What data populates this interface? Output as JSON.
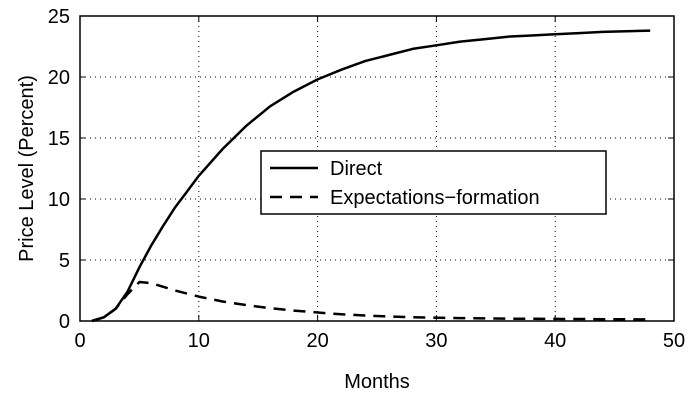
{
  "chart_data": {
    "type": "line",
    "xlabel": "Months",
    "ylabel": "Price Level (Percent)",
    "xlim": [
      0,
      50
    ],
    "ylim": [
      0,
      25
    ],
    "xticks": [
      0,
      10,
      20,
      30,
      40,
      50
    ],
    "yticks": [
      0,
      5,
      10,
      15,
      20,
      25
    ],
    "grid": true,
    "legend_position": "center-right",
    "series": [
      {
        "name": "Direct",
        "style": "solid",
        "color": "#000000",
        "x": [
          1,
          2,
          3,
          4,
          5,
          6,
          7,
          8,
          9,
          10,
          12,
          14,
          16,
          18,
          20,
          22,
          24,
          26,
          28,
          30,
          32,
          34,
          36,
          38,
          40,
          42,
          44,
          46,
          48
        ],
        "y": [
          0.0,
          0.3,
          1.0,
          2.4,
          4.4,
          6.2,
          7.8,
          9.3,
          10.6,
          11.9,
          14.1,
          16.0,
          17.6,
          18.8,
          19.8,
          20.6,
          21.3,
          21.8,
          22.3,
          22.6,
          22.9,
          23.1,
          23.3,
          23.4,
          23.5,
          23.6,
          23.7,
          23.75,
          23.8
        ]
      },
      {
        "name": "Expectations−formation",
        "style": "dashed",
        "color": "#000000",
        "x": [
          1,
          2,
          3,
          4,
          5,
          6,
          7,
          8,
          10,
          12,
          14,
          16,
          18,
          20,
          22,
          24,
          26,
          28,
          30,
          32,
          34,
          36,
          38,
          40,
          42,
          44,
          46,
          48
        ],
        "y": [
          0.0,
          0.3,
          1.0,
          2.2,
          3.2,
          3.1,
          2.8,
          2.5,
          2.0,
          1.6,
          1.3,
          1.05,
          0.85,
          0.7,
          0.55,
          0.45,
          0.37,
          0.3,
          0.27,
          0.24,
          0.21,
          0.19,
          0.18,
          0.17,
          0.16,
          0.15,
          0.14,
          0.13
        ]
      }
    ]
  }
}
